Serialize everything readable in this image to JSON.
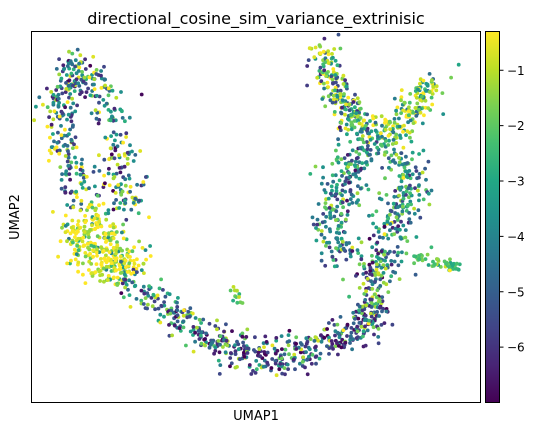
{
  "chart_data": {
    "type": "scatter",
    "title": "directional_cosine_sim_variance_extrinisic",
    "xlabel": "UMAP1",
    "ylabel": "UMAP2",
    "x_ticks_shown": false,
    "y_ticks_shown": false,
    "grid": false,
    "legend": "none",
    "colorbar": {
      "colormap": "viridis",
      "range": [
        -7.0,
        -0.3
      ],
      "ticks": [
        -1,
        -2,
        -3,
        -4,
        -5,
        -6
      ],
      "tick_labels": [
        "−1",
        "−2",
        "−3",
        "−4",
        "−5",
        "−6"
      ]
    },
    "point_count_approx": 2600,
    "clusters": [
      {
        "region": "left upper arm",
        "value_range": [
          -6.5,
          -0.3
        ],
        "typical_value": -3.5
      },
      {
        "region": "left lower blob",
        "value_range": [
          -4,
          -0.3
        ],
        "typical_value": -0.5
      },
      {
        "region": "bottom arc",
        "value_range": [
          -7,
          -1
        ],
        "typical_value": -5.5
      },
      {
        "region": "right upper-left arm",
        "value_range": [
          -6,
          -0.3
        ],
        "typical_value": -1.2
      },
      {
        "region": "right upper-right arm",
        "value_range": [
          -5,
          -0.3
        ],
        "typical_value": -1.0
      },
      {
        "region": "right main body",
        "value_range": [
          -6,
          -1
        ],
        "typical_value": -3.5
      },
      {
        "region": "right side tail",
        "value_range": [
          -3,
          -1.5
        ],
        "typical_value": -2.0
      },
      {
        "region": "center small island",
        "value_range": [
          -3,
          -1.5
        ],
        "typical_value": -2.0
      }
    ]
  }
}
